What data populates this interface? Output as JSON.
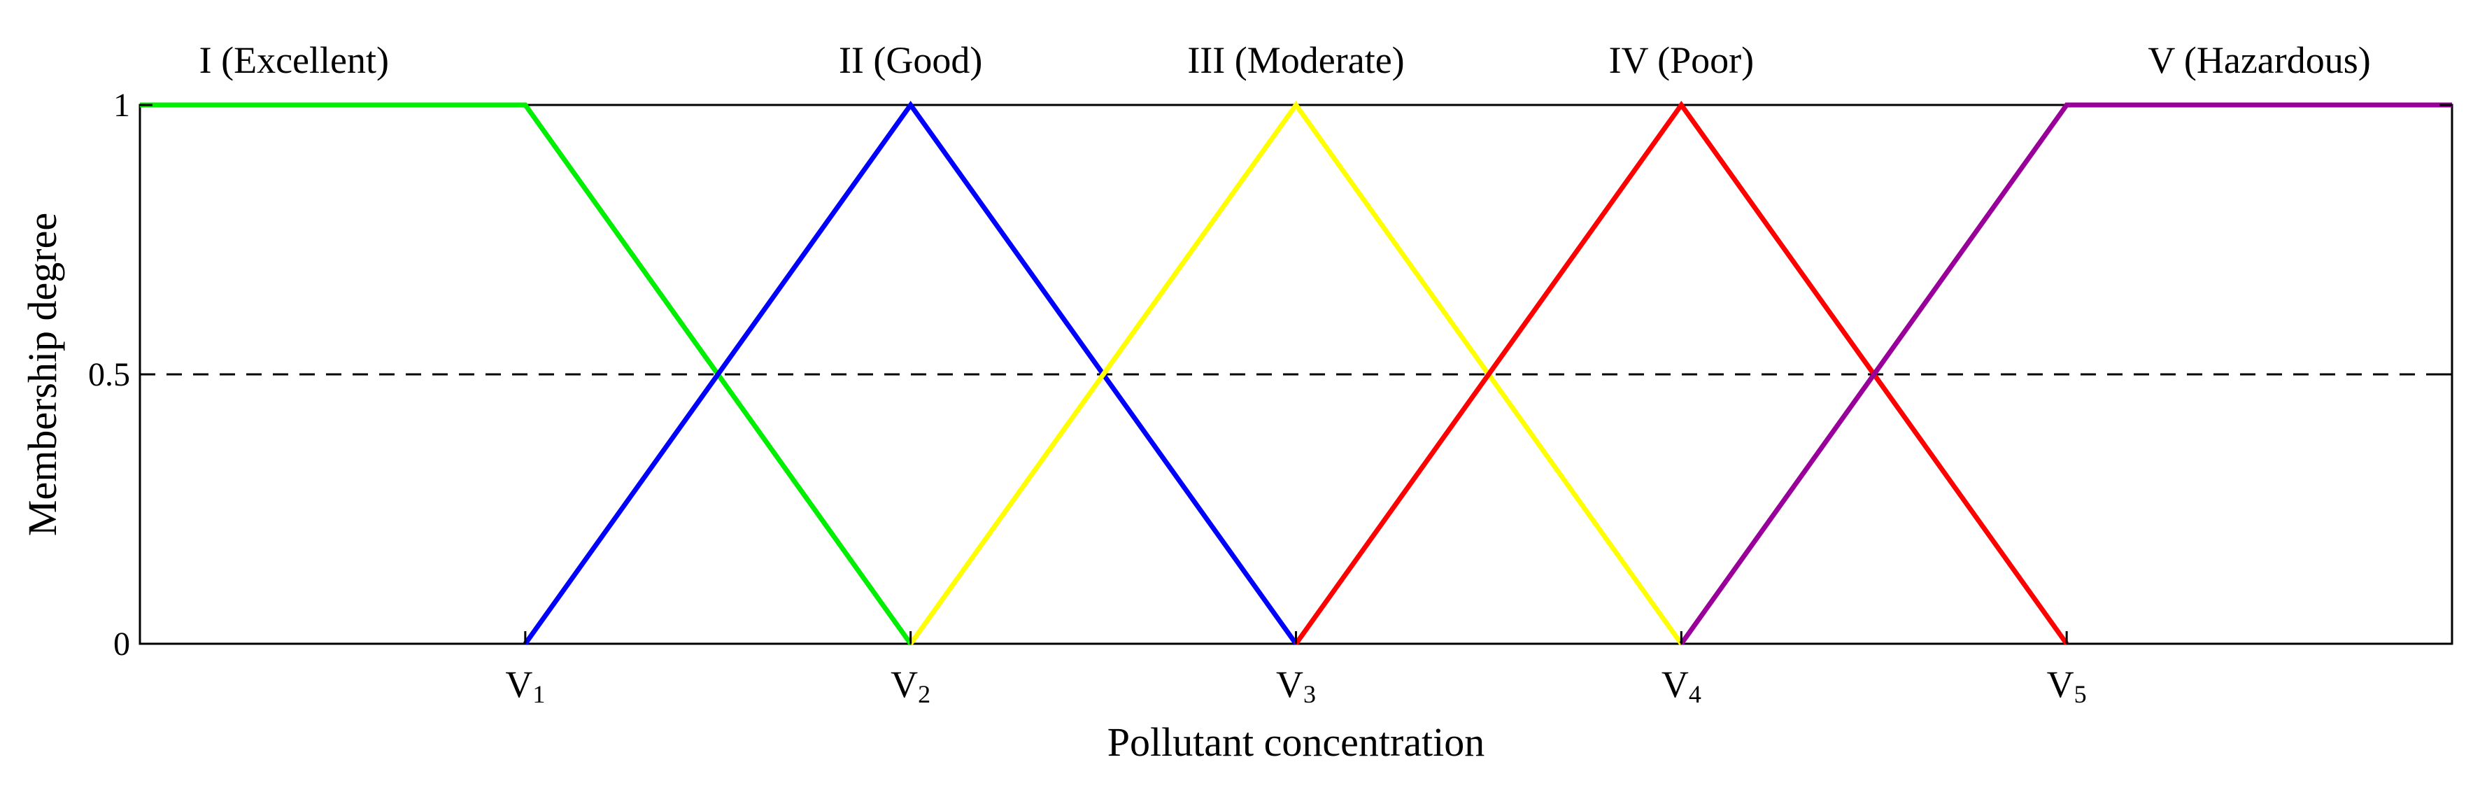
{
  "chart_data": {
    "type": "line",
    "xlabel": "Pollutant concentration",
    "ylabel": "Membership degree",
    "x_ticks": [
      {
        "label": "V",
        "sub": "1",
        "x": 1
      },
      {
        "label": "V",
        "sub": "2",
        "x": 2
      },
      {
        "label": "V",
        "sub": "3",
        "x": 3
      },
      {
        "label": "V",
        "sub": "4",
        "x": 4
      },
      {
        "label": "V",
        "sub": "5",
        "x": 5
      }
    ],
    "y_ticks": [
      "0",
      "0.5",
      "1"
    ],
    "y_tick_values": [
      0,
      0.5,
      1
    ],
    "xlim": [
      0,
      6
    ],
    "ylim": [
      0,
      1
    ],
    "reference_line": {
      "y": 0.5,
      "style": "dashed"
    },
    "grid": false,
    "series": [
      {
        "name": "I (Excellent)",
        "color": "#00ee00",
        "points": [
          [
            0,
            1
          ],
          [
            1,
            1
          ],
          [
            2,
            0
          ]
        ],
        "label_x": 0.4
      },
      {
        "name": "II (Good)",
        "color": "#0000ff",
        "points": [
          [
            1,
            0
          ],
          [
            2,
            1
          ],
          [
            3,
            0
          ]
        ],
        "label_x": 2.0
      },
      {
        "name": "III (Moderate)",
        "color": "#ffff00",
        "points": [
          [
            2,
            0
          ],
          [
            3,
            1
          ],
          [
            4,
            0
          ]
        ],
        "label_x": 3.0
      },
      {
        "name": "IV (Poor)",
        "color": "#ff0000",
        "points": [
          [
            3,
            0
          ],
          [
            4,
            1
          ],
          [
            5,
            0
          ]
        ],
        "label_x": 4.0
      },
      {
        "name": "V (Hazardous)",
        "color": "#990099",
        "points": [
          [
            4,
            0
          ],
          [
            5,
            1
          ],
          [
            6,
            1
          ]
        ],
        "label_x": 5.5
      }
    ]
  }
}
